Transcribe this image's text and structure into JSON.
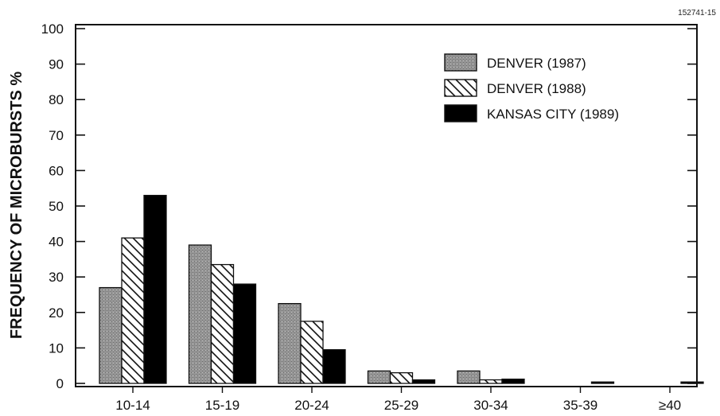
{
  "figure_id": "152741-15",
  "chart_data": {
    "type": "bar",
    "categories": [
      "10-14",
      "15-19",
      "20-24",
      "25-29",
      "30-34",
      "35-39",
      "≥40"
    ],
    "series": [
      {
        "name": "DENVER (1987)",
        "values": [
          27,
          39,
          22.5,
          3.5,
          3.5,
          0,
          0
        ],
        "color": "#8c8c8c",
        "pattern": "stipple"
      },
      {
        "name": "DENVER (1988)",
        "values": [
          41,
          33.5,
          17.5,
          3,
          1,
          0,
          0
        ],
        "color": "#ffffff",
        "pattern": "diagonal-hatch"
      },
      {
        "name": "KANSAS CITY (1989)",
        "values": [
          53,
          28,
          9.5,
          1,
          1.2,
          0.4,
          0.4
        ],
        "color": "#000000",
        "pattern": "solid"
      }
    ],
    "title": "",
    "xlabel": "",
    "ylabel": "FREQUENCY OF MICROBURSTS %",
    "ylim": [
      0,
      100
    ],
    "yticks": [
      0,
      10,
      20,
      30,
      40,
      50,
      60,
      70,
      80,
      90,
      100
    ],
    "grid": false,
    "legend_position": "top-right"
  }
}
